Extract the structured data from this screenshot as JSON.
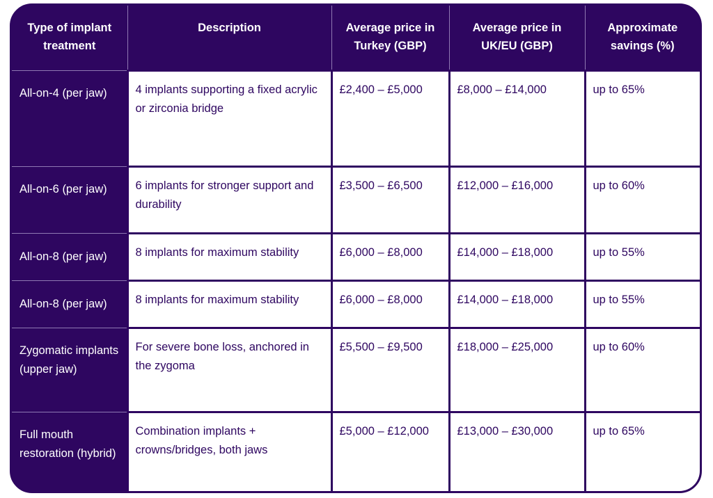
{
  "table": {
    "headers": [
      "Type of implant treatment",
      "Description",
      "Average price in Turkey (GBP)",
      "Average price in UK/EU (GBP)",
      "Approximate savings (%)"
    ],
    "rows": [
      {
        "type": "All-on-4 (per jaw)",
        "description": "4 implants supporting a fixed acrylic or zirconia bridge",
        "price_turkey": "£2,400 – £5,000",
        "price_uk_eu": "£8,000 – £14,000",
        "savings": "up to 65%"
      },
      {
        "type": "All-on-6 (per jaw)",
        "description": "6 implants for stronger support and durability",
        "price_turkey": "£3,500 – £6,500",
        "price_uk_eu": "£12,000 – £16,000",
        "savings": "up to 60%"
      },
      {
        "type": "All-on-8 (per jaw)",
        "description": "8 implants for maximum stability",
        "price_turkey": "£6,000 – £8,000",
        "price_uk_eu": "£14,000 – £18,000",
        "savings": "up to 55%"
      },
      {
        "type": "All-on-8 (per jaw)",
        "description": "8 implants for maximum stability",
        "price_turkey": "£6,000 – £8,000",
        "price_uk_eu": "£14,000 – £18,000",
        "savings": "up to 55%"
      },
      {
        "type": "Zygomatic implants (upper jaw)",
        "description": "For severe bone loss, anchored in the zygoma",
        "price_turkey": "£5,500 – £9,500",
        "price_uk_eu": "£18,000 – £25,000",
        "savings": "up to 60%"
      },
      {
        "type": "Full mouth restoration (hybrid)",
        "description": "Combination implants + crowns/bridges, both jaws",
        "price_turkey": "£5,000 – £12,000",
        "price_uk_eu": "£13,000 – £30,000",
        "savings": "up to 65%"
      }
    ]
  },
  "colors": {
    "header_bg": "#2e0660",
    "header_text": "#ffffff",
    "cell_bg": "#ffffff",
    "cell_text": "#2e0660",
    "border": "#2e0660",
    "divider_light": "#8f79b3"
  }
}
